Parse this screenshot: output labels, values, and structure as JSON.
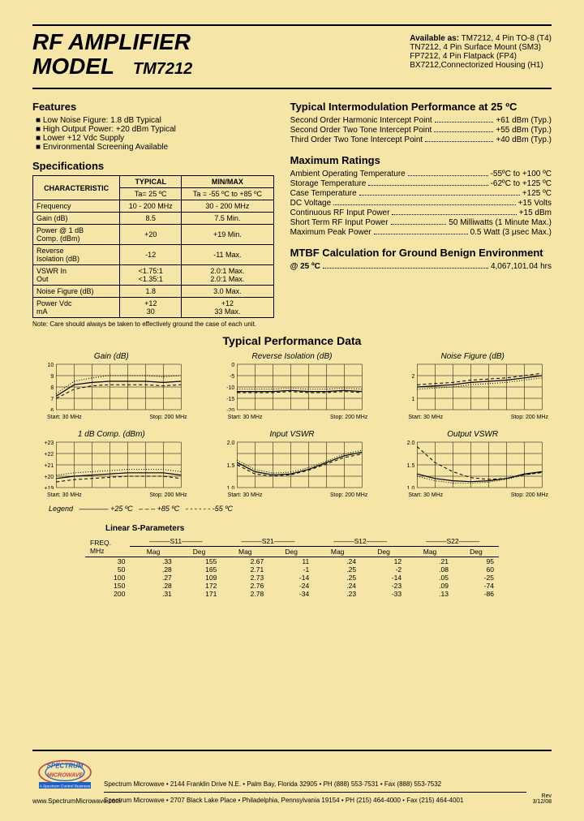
{
  "header": {
    "title_line1": "RF AMPLIFIER",
    "title_line2": "MODEL",
    "model": "TM7212",
    "available_label": "Available as:",
    "available": [
      "TM7212, 4 Pin TO-8 (T4)",
      "TN7212, 4 Pin Surface Mount (SM3)",
      "FP7212, 4 Pin Flatpack (FP4)",
      "BX7212,Connectorized Housing (H1)"
    ]
  },
  "features": {
    "title": "Features",
    "items": [
      "Low Noise Figure: 1.8 dB Typical",
      "High Output Power: +20 dBm Typical",
      "Lower +12 Vdc Supply",
      "Environmental Screening Available"
    ]
  },
  "specs": {
    "title": "Specifications",
    "headers": {
      "char": "CHARACTERISTIC",
      "typ": "TYPICAL",
      "typ_sub": "Ta= 25 ºC",
      "mm": "MIN/MAX",
      "mm_sub": "Ta = -55 ºC to +85 ºC"
    },
    "rows": [
      {
        "c": "Frequency",
        "t": "10 - 200 MHz",
        "m": "30 - 200 MHz"
      },
      {
        "c": "Gain (dB)",
        "t": "8.5",
        "m": "7.5 Min."
      },
      {
        "c": "Power @ 1 dB\nComp. (dBm)",
        "t": "+20",
        "m": "+19 Min."
      },
      {
        "c": "Reverse\nIsolation (dB)",
        "t": "-12",
        "m": "-11 Max."
      },
      {
        "c": "VSWR    In\n            Out",
        "t": "<1.75:1\n<1.35:1",
        "m": "2.0:1 Max.\n2.0:1 Max."
      },
      {
        "c": "Noise Figure (dB)",
        "t": "1.8",
        "m": "3.0 Max."
      },
      {
        "c": "Power    Vdc\n            mA",
        "t": "+12\n30",
        "m": "+12\n33 Max."
      }
    ],
    "note": "Note: Care should always be taken to effectively ground the case of each unit."
  },
  "intermod": {
    "title": "Typical Intermodulation Performance at 25 ºC",
    "rows": [
      {
        "l": "Second Order Harmonic Intercept Point",
        "v": "+61 dBm (Typ.)"
      },
      {
        "l": "Second Order Two Tone Intercept Point",
        "v": "+55 dBm (Typ.)"
      },
      {
        "l": "Third Order Two Tone Intercept Point",
        "v": "+40 dBm (Typ.)"
      }
    ]
  },
  "maxratings": {
    "title": "Maximum Ratings",
    "rows": [
      {
        "l": "Ambient Operating Temperature",
        "v": "-55ºC to +100 ºC"
      },
      {
        "l": "Storage Temperature",
        "v": "-62ºC to +125 ºC"
      },
      {
        "l": "Case Temperature",
        "v": "+125 ºC"
      },
      {
        "l": "DC Voltage",
        "v": "+15 Volts"
      },
      {
        "l": "Continuous RF Input Power",
        "v": "+15 dBm"
      },
      {
        "l": "Short Term RF Input Power",
        "v": "50 Milliwatts (1 Minute Max.)"
      },
      {
        "l": "Maximum Peak Power",
        "v": "0.5 Watt (3 μsec Max.)"
      }
    ]
  },
  "mtbf": {
    "title": "MTBF Calculation for Ground Benign Environment",
    "sub": "@ 25 ºC",
    "value": "4,067,101.04 hrs"
  },
  "perfdata": {
    "title": "Typical Performance Data",
    "start_label": "Start: 30 MHz",
    "stop_label": "Stop: 200 MHz",
    "charts": [
      {
        "title": "Gain (dB)",
        "yticks": [
          "10",
          "9",
          "8",
          "7",
          "6"
        ],
        "ylim": [
          6,
          10
        ],
        "series": {
          "solid": [
            7.2,
            8.2,
            8.4,
            8.5,
            8.5,
            8.5,
            8.4,
            8.5
          ],
          "dash": [
            7.0,
            7.8,
            8.1,
            8.2,
            8.2,
            8.2,
            8.1,
            8.2
          ],
          "dot": [
            7.4,
            8.5,
            8.8,
            9.0,
            9.0,
            9.0,
            8.9,
            9.0
          ]
        }
      },
      {
        "title": "Reverse Isolation (dB)",
        "yticks": [
          "0",
          "-5",
          "-10",
          "-15",
          "-20"
        ],
        "ylim": [
          -20,
          0
        ],
        "series": {
          "solid": [
            -12,
            -12,
            -12,
            -11.5,
            -12,
            -12,
            -11.5,
            -12
          ],
          "dash": [
            -12.5,
            -12.5,
            -12.5,
            -12,
            -12.5,
            -12.5,
            -12,
            -12.5
          ],
          "dot": [
            -11,
            -11,
            -11,
            -10.5,
            -11,
            -11,
            -10.5,
            -11
          ]
        }
      },
      {
        "title": "Noise Figure (dB)",
        "yticks": [
          "",
          "2",
          "",
          "1",
          ""
        ],
        "ylim": [
          0.5,
          2.5
        ],
        "series": {
          "solid": [
            1.5,
            1.55,
            1.6,
            1.7,
            1.75,
            1.8,
            1.9,
            2.0
          ],
          "dash": [
            1.6,
            1.65,
            1.7,
            1.8,
            1.85,
            1.9,
            2.0,
            2.1
          ],
          "dot": [
            1.4,
            1.45,
            1.5,
            1.6,
            1.65,
            1.7,
            1.8,
            1.9
          ]
        }
      },
      {
        "title": "1 dB Comp. (dBm)",
        "yticks": [
          "+23",
          "+22",
          "+21",
          "+20",
          "+19"
        ],
        "ylim": [
          19,
          23
        ],
        "series": {
          "solid": [
            19.8,
            20.0,
            20.1,
            20.2,
            20.3,
            20.3,
            20.3,
            20.1
          ],
          "dash": [
            19.5,
            19.7,
            19.8,
            19.9,
            20.0,
            20.0,
            20.0,
            19.8
          ],
          "dot": [
            20.1,
            20.3,
            20.4,
            20.5,
            20.6,
            20.6,
            20.6,
            20.4
          ]
        }
      },
      {
        "title": "Input VSWR",
        "yticks": [
          "2.0",
          "",
          "1.5",
          "",
          "1.0"
        ],
        "ylim": [
          1.0,
          2.0
        ],
        "series": {
          "solid": [
            1.55,
            1.35,
            1.28,
            1.3,
            1.4,
            1.55,
            1.7,
            1.78
          ],
          "dash": [
            1.5,
            1.3,
            1.25,
            1.28,
            1.38,
            1.52,
            1.66,
            1.74
          ],
          "dot": [
            1.6,
            1.4,
            1.32,
            1.34,
            1.44,
            1.58,
            1.74,
            1.82
          ]
        }
      },
      {
        "title": "Output VSWR",
        "yticks": [
          "2.0",
          "",
          "1.5",
          "",
          "1.0"
        ],
        "ylim": [
          1.0,
          2.0
        ],
        "series": {
          "solid": [
            1.3,
            1.2,
            1.15,
            1.13,
            1.15,
            1.2,
            1.3,
            1.35
          ],
          "dash": [
            1.9,
            1.55,
            1.35,
            1.22,
            1.18,
            1.2,
            1.28,
            1.33
          ],
          "dot": [
            1.25,
            1.15,
            1.1,
            1.1,
            1.12,
            1.18,
            1.28,
            1.33
          ]
        }
      }
    ],
    "legend": {
      "label": "Legend",
      "a": "+25 ºC",
      "b": "+85 ºC",
      "c": "-55 ºC"
    }
  },
  "sparams": {
    "title": "Linear S-Parameters",
    "freq_label": "FREQ.\nMHz",
    "groups": [
      "S11",
      "S21",
      "S12",
      "S22"
    ],
    "sub": [
      "Mag",
      "Deg"
    ],
    "rows": [
      {
        "f": "30",
        "v": [
          ".33",
          "155",
          "2.67",
          "11",
          ".24",
          "12",
          ".21",
          "95"
        ]
      },
      {
        "f": "50",
        "v": [
          ".28",
          "165",
          "2.71",
          "-1",
          ".25",
          "-2",
          ".08",
          "60"
        ]
      },
      {
        "f": "100",
        "v": [
          ".27",
          "109",
          "2.73",
          "-14",
          ".25",
          "-14",
          ".05",
          "-25"
        ]
      },
      {
        "f": "150",
        "v": [
          ".28",
          "172",
          "2.76",
          "-24",
          ".24",
          "-23",
          ".09",
          "-74"
        ]
      },
      {
        "f": "200",
        "v": [
          ".31",
          "171",
          "2.78",
          "-34",
          ".23",
          "-33",
          ".13",
          "-86"
        ]
      }
    ]
  },
  "footer": {
    "logo_top": "SPECTRUM",
    "logo_bottom": "MICROWAVE",
    "tagline": "A Spectrum Control Business",
    "url": "www.SpectrumMicrowave.com",
    "line1": "Spectrum Microwave • 2144 Franklin Drive N.E. • Palm Bay, Florida 32905 • PH (888) 553-7531 • Fax (888) 553-7532",
    "line2": "Spectrum Microwave • 2707 Black Lake Place • Philadelphia, Pennsylvania 19154 • PH (215) 464-4000 • Fax (215) 464-4001",
    "rev": "Rev\n3/12/08"
  },
  "style": {
    "bg": "#f5e6a8",
    "line_solid": "#000000",
    "grid": "#000000"
  }
}
